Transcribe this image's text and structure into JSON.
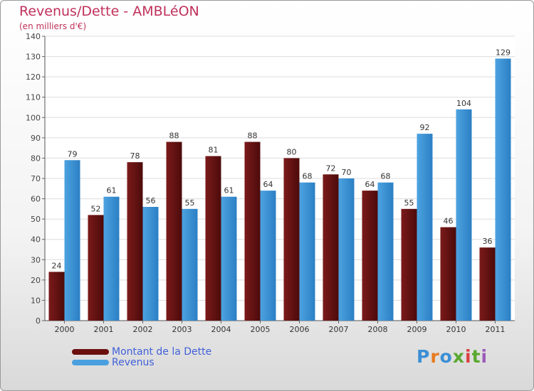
{
  "title": "Revenus/Dette - AMBLéON",
  "subtitle": "(en milliers d'€)",
  "logo_text": "Proxiti",
  "colors": {
    "debt": "#7a1a1a",
    "debt_dark": "#4d0b0b",
    "revenue": "#4da3e0",
    "revenue_dark": "#2b7fc4",
    "title": "#c0315a",
    "legend_text": "#3f5fd8"
  },
  "legend": [
    {
      "name": "Montant de la Dette",
      "color": "#6b0f0f"
    },
    {
      "name": "Revenus",
      "color": "#4aa0df"
    }
  ],
  "chart_data": {
    "type": "bar",
    "categories": [
      "2000",
      "2001",
      "2002",
      "2003",
      "2004",
      "2005",
      "2006",
      "2007",
      "2008",
      "2009",
      "2010",
      "2011"
    ],
    "series": [
      {
        "name": "Montant de la Dette",
        "values": [
          24,
          52,
          78,
          88,
          81,
          88,
          80,
          72,
          64,
          55,
          46,
          36
        ]
      },
      {
        "name": "Revenus",
        "values": [
          79,
          61,
          56,
          55,
          61,
          64,
          68,
          70,
          68,
          92,
          104,
          129
        ]
      }
    ],
    "ylim": [
      0,
      140
    ],
    "yticks": [
      0,
      10,
      20,
      30,
      40,
      50,
      60,
      70,
      80,
      90,
      100,
      110,
      120,
      130,
      140
    ],
    "grid": true,
    "legend_position": "bottom-left"
  }
}
